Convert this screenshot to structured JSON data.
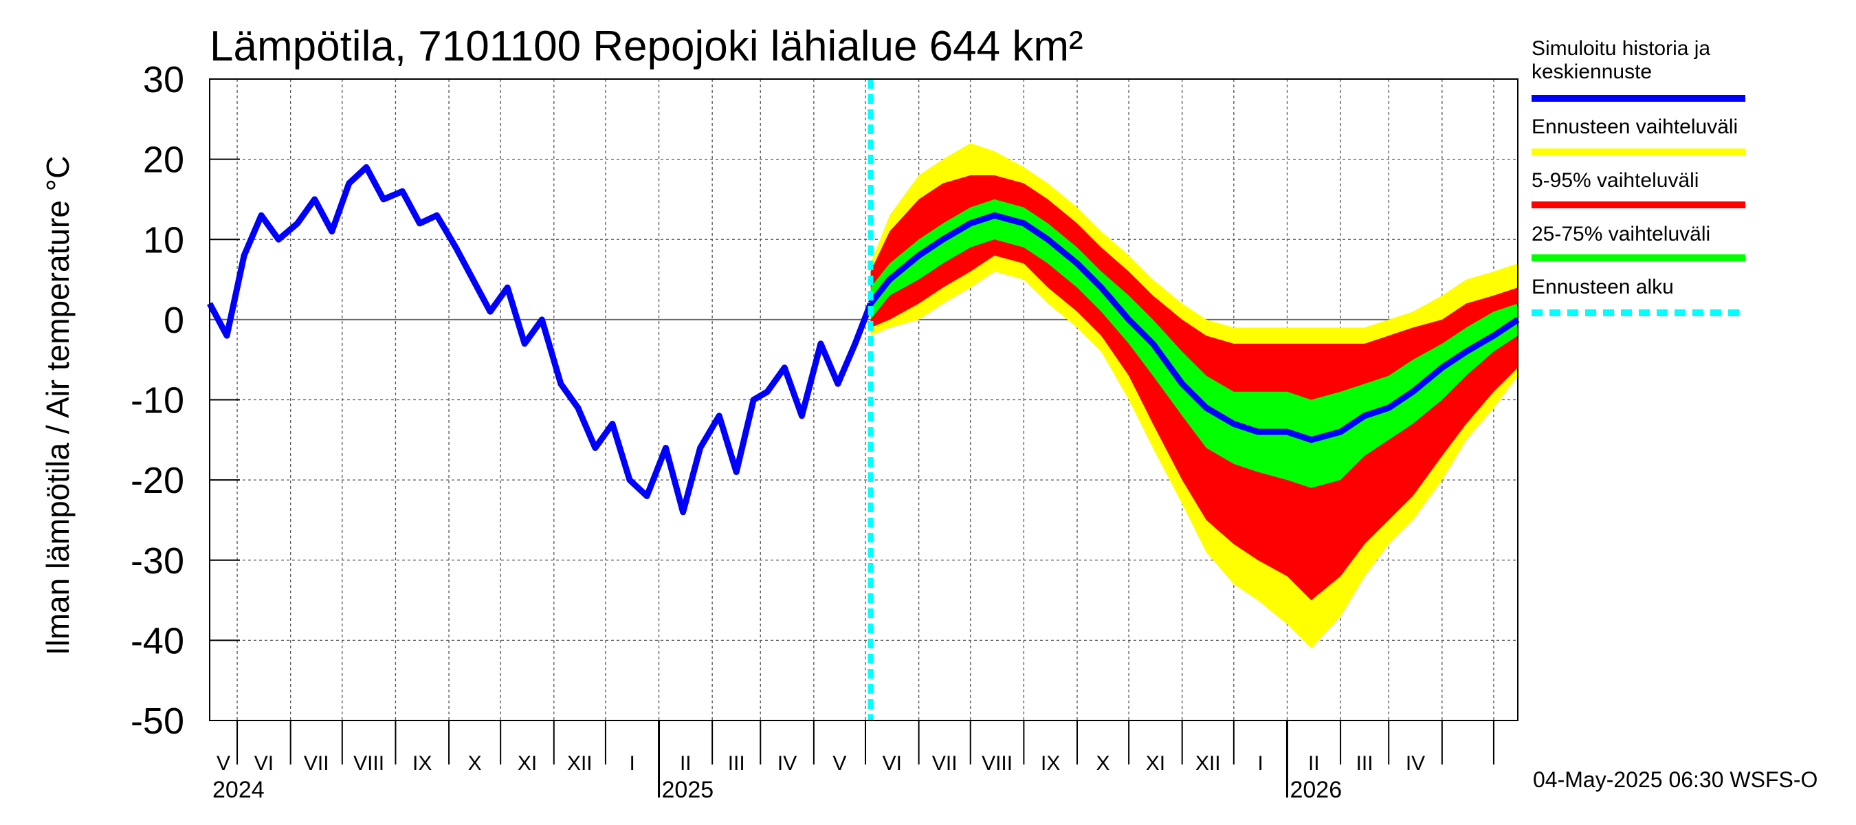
{
  "chart_data": {
    "type": "area",
    "title": "Lämpötila, 7101100 Repojoki lähialue 644 km²",
    "ylabel": "Ilman lämpötila / Air temperature    °C",
    "xlabel": "",
    "ylim": [
      -50,
      30
    ],
    "yticks": [
      30,
      20,
      10,
      0,
      -10,
      -20,
      -30,
      -40,
      -50
    ],
    "grid": true,
    "x_axis": {
      "start": "2024-04-15",
      "end": "2026-05-15",
      "months": [
        "V",
        "VI",
        "VII",
        "VIII",
        "IX",
        "X",
        "XI",
        "XII",
        "I",
        "II",
        "III",
        "IV",
        "V",
        "VI",
        "VII",
        "VIII",
        "IX",
        "X",
        "XI",
        "XII",
        "I",
        "II",
        "III",
        "IV"
      ],
      "years": [
        "2024",
        "2025",
        "2026"
      ]
    },
    "forecast_start": "2025-05-04",
    "history_series": {
      "name": "Simuloitu historia ja keskiennuste",
      "x": [
        "2024-04-15",
        "2024-04-25",
        "2024-05-05",
        "2024-05-15",
        "2024-05-25",
        "2024-06-05",
        "2024-06-15",
        "2024-06-25",
        "2024-07-05",
        "2024-07-15",
        "2024-07-25",
        "2024-08-05",
        "2024-08-15",
        "2024-08-25",
        "2024-09-05",
        "2024-09-15",
        "2024-09-25",
        "2024-10-05",
        "2024-10-15",
        "2024-10-25",
        "2024-11-05",
        "2024-11-15",
        "2024-11-25",
        "2024-12-05",
        "2024-12-15",
        "2024-12-25",
        "2025-01-05",
        "2025-01-15",
        "2025-01-25",
        "2025-02-05",
        "2025-02-15",
        "2025-02-25",
        "2025-03-05",
        "2025-03-15",
        "2025-03-25",
        "2025-04-05",
        "2025-04-15",
        "2025-04-25",
        "2025-05-04"
      ],
      "values": [
        2,
        -2,
        8,
        13,
        10,
        12,
        15,
        11,
        17,
        19,
        15,
        16,
        12,
        13,
        9,
        5,
        1,
        4,
        -3,
        0,
        -8,
        -11,
        -16,
        -13,
        -20,
        -22,
        -16,
        -24,
        -16,
        -12,
        -19,
        -10,
        -9,
        -6,
        -12,
        -3,
        -8,
        -3,
        2
      ],
      "color": "#0000ff"
    },
    "forecast_series": {
      "x": [
        "2025-05-04",
        "2025-05-15",
        "2025-06-01",
        "2025-06-15",
        "2025-07-01",
        "2025-07-15",
        "2025-08-01",
        "2025-08-15",
        "2025-09-01",
        "2025-09-15",
        "2025-10-01",
        "2025-10-15",
        "2025-11-01",
        "2025-11-15",
        "2025-12-01",
        "2025-12-15",
        "2026-01-01",
        "2026-01-15",
        "2026-02-01",
        "2026-02-15",
        "2026-03-01",
        "2026-03-15",
        "2026-04-01",
        "2026-04-15",
        "2026-05-01",
        "2026-05-15"
      ],
      "median": [
        2,
        5,
        8,
        10,
        12,
        13,
        12,
        10,
        7,
        4,
        0,
        -3,
        -8,
        -11,
        -13,
        -14,
        -14,
        -15,
        -14,
        -12,
        -11,
        -9,
        -6,
        -4,
        -2,
        0
      ],
      "p25": [
        0,
        3,
        5,
        7,
        9,
        10,
        9,
        7,
        4,
        1,
        -3,
        -7,
        -12,
        -16,
        -18,
        -19,
        -20,
        -21,
        -20,
        -17,
        -15,
        -13,
        -10,
        -7,
        -4,
        -2
      ],
      "p75": [
        4,
        7,
        10,
        12,
        14,
        15,
        14,
        12,
        9,
        6,
        3,
        0,
        -4,
        -7,
        -9,
        -9,
        -9,
        -10,
        -9,
        -8,
        -7,
        -5,
        -3,
        -1,
        1,
        2
      ],
      "p05": [
        -1,
        0,
        2,
        4,
        6,
        8,
        7,
        4,
        1,
        -2,
        -7,
        -13,
        -20,
        -25,
        -28,
        -30,
        -32,
        -35,
        -32,
        -28,
        -25,
        -22,
        -17,
        -13,
        -9,
        -6
      ],
      "p95": [
        6,
        11,
        15,
        17,
        18,
        18,
        17,
        15,
        12,
        9,
        6,
        3,
        0,
        -2,
        -3,
        -3,
        -3,
        -3,
        -3,
        -3,
        -2,
        -1,
        0,
        2,
        3,
        4
      ],
      "min": [
        -2,
        -1,
        0,
        2,
        4,
        6,
        5,
        2,
        -1,
        -4,
        -10,
        -16,
        -23,
        -29,
        -33,
        -35,
        -38,
        -41,
        -37,
        -32,
        -28,
        -25,
        -20,
        -15,
        -11,
        -7
      ],
      "max": [
        7,
        13,
        18,
        20,
        22,
        21,
        19,
        17,
        14,
        11,
        8,
        5,
        2,
        0,
        -1,
        -1,
        -1,
        -1,
        -1,
        -1,
        0,
        1,
        3,
        5,
        6,
        7
      ]
    },
    "legend": [
      {
        "label": "Simuloitu historia ja keskiennuste",
        "color": "#0000ff"
      },
      {
        "label": "Ennusteen vaihteluväli",
        "color": "#ffff00"
      },
      {
        "label": "5-95% vaihteluväli",
        "color": "#ff0000"
      },
      {
        "label": "25-75% vaihteluväli",
        "color": "#00ff00"
      },
      {
        "label": "Ennusteen alku",
        "color": "#00ffff"
      }
    ],
    "legend_placement": "right",
    "footer": "04-May-2025 06:30 WSFS-O"
  }
}
